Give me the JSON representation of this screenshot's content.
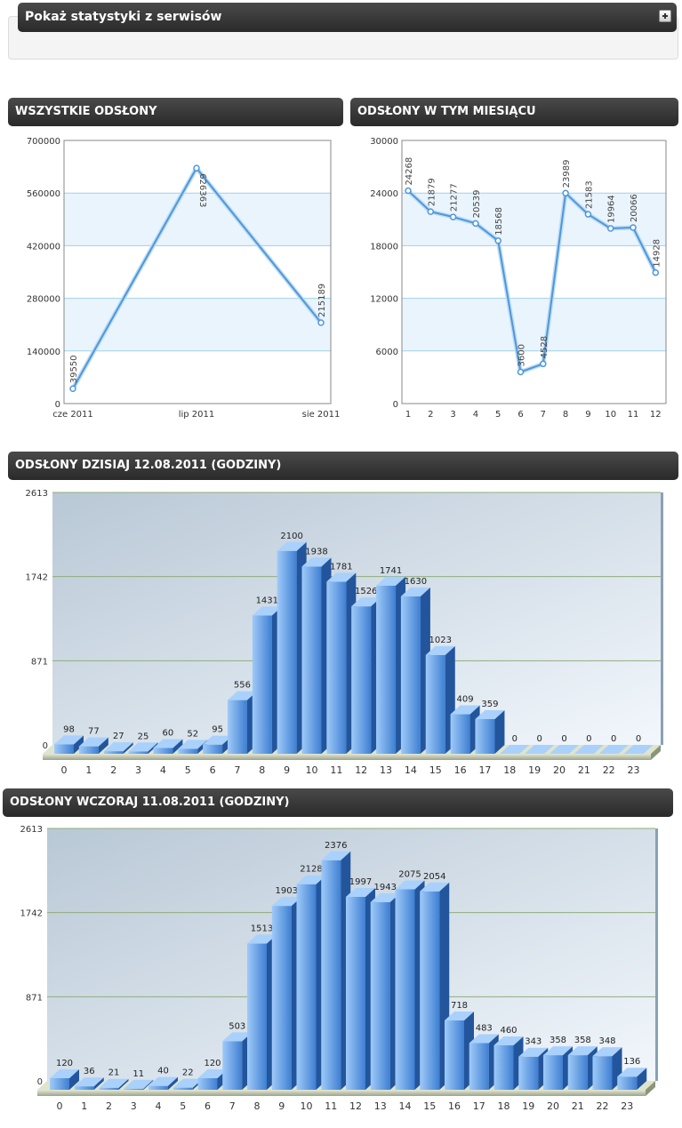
{
  "stats_toggle": {
    "title": "Pokaż statystyki z serwisów"
  },
  "chart_data": [
    {
      "type": "line",
      "title": "WSZYSTKIE ODSŁONY",
      "categories": [
        "cze 2011",
        "lip 2011",
        "sie 2011"
      ],
      "values": [
        39550,
        626363,
        215189
      ],
      "y_ticks": [
        "0",
        "140000",
        "280000",
        "420000",
        "560000",
        "700000"
      ],
      "ylim": [
        0,
        700000
      ],
      "grid": true
    },
    {
      "type": "line",
      "title": "ODSŁONY W TYM MIESIĄCU",
      "categories": [
        "1",
        "2",
        "3",
        "4",
        "5",
        "6",
        "7",
        "8",
        "9",
        "10",
        "11",
        "12"
      ],
      "values": [
        24268,
        21879,
        21277,
        20539,
        18568,
        3600,
        4528,
        23989,
        21583,
        19964,
        20066,
        14928
      ],
      "y_ticks": [
        "0",
        "6000",
        "12000",
        "18000",
        "24000",
        "30000"
      ],
      "ylim": [
        0,
        30000
      ],
      "grid": true
    },
    {
      "type": "bar",
      "title": "ODSŁONY DZISIAJ 12.08.2011 (GODZINY)",
      "categories": [
        "0",
        "1",
        "2",
        "3",
        "4",
        "5",
        "6",
        "7",
        "8",
        "9",
        "10",
        "11",
        "12",
        "13",
        "14",
        "15",
        "16",
        "17",
        "18",
        "19",
        "20",
        "21",
        "22",
        "23"
      ],
      "values": [
        98,
        77,
        27,
        25,
        60,
        52,
        95,
        556,
        1431,
        2100,
        1938,
        1781,
        1526,
        1741,
        1630,
        1023,
        409,
        359,
        0,
        0,
        0,
        0,
        0,
        0
      ],
      "y_ticks": [
        "0",
        "871",
        "1742",
        "2613"
      ],
      "ylim": [
        0,
        2613
      ],
      "grid": true
    },
    {
      "type": "bar",
      "title": "ODSŁONY WCZORAJ 11.08.2011 (GODZINY)",
      "categories": [
        "0",
        "1",
        "2",
        "3",
        "4",
        "5",
        "6",
        "7",
        "8",
        "9",
        "10",
        "11",
        "12",
        "13",
        "14",
        "15",
        "16",
        "17",
        "18",
        "19",
        "20",
        "21",
        "22",
        "23"
      ],
      "values": [
        120,
        36,
        21,
        11,
        40,
        22,
        120,
        503,
        1513,
        1903,
        2128,
        2376,
        1997,
        1943,
        2075,
        2054,
        718,
        483,
        460,
        343,
        358,
        358,
        348,
        136
      ],
      "y_ticks": [
        "0",
        "871",
        "1742",
        "2613"
      ],
      "ylim": [
        0,
        2613
      ],
      "grid": true
    }
  ]
}
